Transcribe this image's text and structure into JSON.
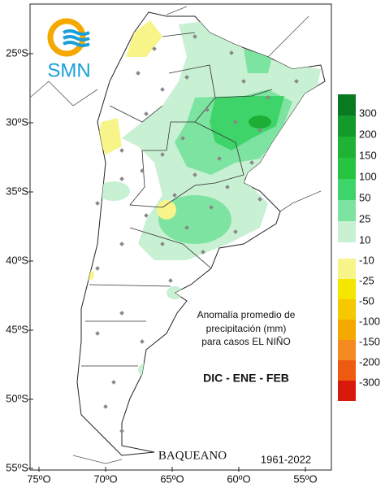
{
  "logo": {
    "text": "SMN"
  },
  "latitude_labels": [
    "25ºS",
    "30ºS",
    "35ºS",
    "40ºS",
    "45ºS",
    "50ºS",
    "55ºS"
  ],
  "longitude_labels": [
    "75ºO",
    "70ºO",
    "65ºO",
    "60ºO",
    "55ºO"
  ],
  "legend": {
    "positive": [
      {
        "label": "300",
        "color": "#0a7a22"
      },
      {
        "label": "200",
        "color": "#129a2a"
      },
      {
        "label": "150",
        "color": "#1fb335"
      },
      {
        "label": "100",
        "color": "#27c43f"
      },
      {
        "label": "50",
        "color": "#3fd46a"
      },
      {
        "label": "25",
        "color": "#7de3a0"
      },
      {
        "label": "10",
        "color": "#c8f0d3"
      }
    ],
    "negative": [
      {
        "label": "-10",
        "color": "#f7f58a"
      },
      {
        "label": "-25",
        "color": "#f5e600"
      },
      {
        "label": "-50",
        "color": "#f5c800"
      },
      {
        "label": "-100",
        "color": "#f5a800"
      },
      {
        "label": "-150",
        "color": "#f58a20"
      },
      {
        "label": "-200",
        "color": "#ee5a10"
      },
      {
        "label": "-300",
        "color": "#d81a0a"
      }
    ]
  },
  "annotation": {
    "lines": [
      "Anomalía promedio de",
      "precipitación (mm)",
      "para casos EL NIÑO"
    ],
    "period": "DIC - ENE - FEB"
  },
  "credit": "BAQUEANO",
  "years": "1961-2022"
}
